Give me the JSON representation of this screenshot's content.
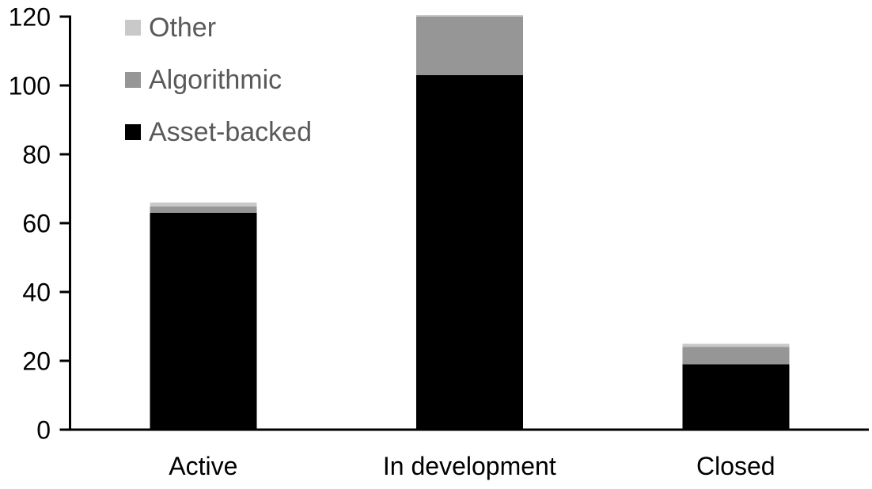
{
  "chart_data": {
    "type": "bar",
    "stacked": true,
    "title": "",
    "xlabel": "",
    "ylabel": "",
    "categories": [
      "Active",
      "In development",
      "Closed"
    ],
    "series": [
      {
        "name": "Asset-backed",
        "color": "#000000",
        "values": [
          63,
          103,
          19
        ]
      },
      {
        "name": "Algorithmic",
        "color": "#969696",
        "values": [
          2,
          17,
          5
        ]
      },
      {
        "name": "Other",
        "color": "#c9c9c9",
        "values": [
          1,
          0.5,
          1
        ]
      }
    ],
    "ylim": [
      0,
      120
    ],
    "ytick_step": 20,
    "yticks": [
      0,
      20,
      40,
      60,
      80,
      100,
      120
    ],
    "grid": false,
    "legend_position": "top-left",
    "legend_order": [
      "Other",
      "Algorithmic",
      "Asset-backed"
    ],
    "axis_color": "#000000",
    "tick_label_color": "#000000",
    "legend_text_color": "#595959",
    "background_color": "#ffffff"
  }
}
